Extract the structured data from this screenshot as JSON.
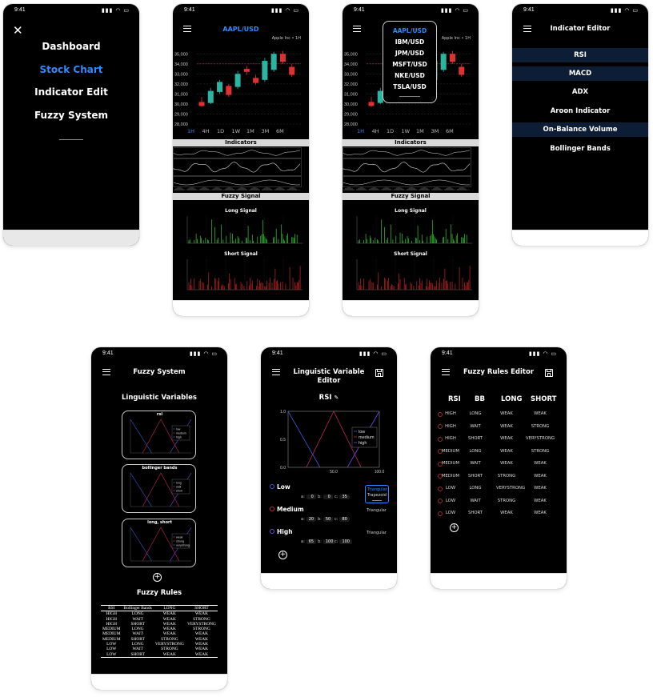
{
  "status": {
    "time": "9:41",
    "icons": "▮▮▮ ◠ ▭"
  },
  "menu": {
    "items": [
      "Dashboard",
      "Stock Chart",
      "Indicator Edit",
      "Fuzzy System"
    ],
    "active": 1
  },
  "chart": {
    "symbol": "AAPL/USD",
    "company": "Apple Inc • 1H",
    "timeframes": [
      "1H",
      "4H",
      "1D",
      "1W",
      "1M",
      "3M",
      "6M"
    ],
    "timeframe_active": 0,
    "indicators_label": "Indicators",
    "fuzzy_label": "Fuzzy Signal",
    "long_label": "Long Signal",
    "short_label": "Short Signal",
    "colors": {
      "up": "#2bb5a0",
      "down": "#e03131",
      "long": "#35c735",
      "short": "#c42424"
    }
  },
  "chart_data": {
    "type": "candlestick",
    "y_ticks": [
      "35,000",
      "34,000",
      "33,000",
      "32,000",
      "31,000",
      "30,000",
      "29,000",
      "28,000"
    ],
    "ylim": [
      28000,
      35500
    ],
    "price_line": 34000,
    "candles": [
      {
        "o": 30200,
        "h": 30700,
        "l": 29700,
        "c": 29800
      },
      {
        "o": 30100,
        "h": 31600,
        "l": 30000,
        "c": 31300
      },
      {
        "o": 31200,
        "h": 32400,
        "l": 31000,
        "c": 32200
      },
      {
        "o": 31800,
        "h": 32000,
        "l": 30700,
        "c": 30900
      },
      {
        "o": 31700,
        "h": 33300,
        "l": 31500,
        "c": 33000
      },
      {
        "o": 33500,
        "h": 33800,
        "l": 32900,
        "c": 33200
      },
      {
        "o": 32600,
        "h": 32900,
        "l": 31900,
        "c": 32100
      },
      {
        "o": 32400,
        "h": 34600,
        "l": 32200,
        "c": 34300
      },
      {
        "o": 33400,
        "h": 35200,
        "l": 33200,
        "c": 35000
      },
      {
        "o": 35000,
        "h": 35300,
        "l": 34000,
        "c": 34200
      },
      {
        "o": 33700,
        "h": 34000,
        "l": 32700,
        "c": 32900
      }
    ]
  },
  "dropdown": {
    "items": [
      "AAPL/USD",
      "IBM/USD",
      "JPM/USD",
      "MSFT/USD",
      "NKE/USD",
      "TSLA/USD"
    ],
    "active": 0
  },
  "indicator_editor": {
    "title": "Indicator Editor",
    "items": [
      "RSI",
      "MACD",
      "ADX",
      "Aroon Indicator",
      "On-Balance Volume",
      "Bollinger Bands"
    ],
    "highlighted": [
      0,
      1,
      4
    ]
  },
  "fuzzy_system": {
    "title": "Fuzzy System",
    "lv_heading": "Linguistic Variables",
    "cards": [
      {
        "title": "rsi",
        "legend": [
          "low",
          "medium",
          "high"
        ]
      },
      {
        "title": "bollinger bands",
        "legend": [
          "long",
          "wait",
          "short"
        ]
      },
      {
        "title": "long, short",
        "legend": [
          "weak",
          "strong",
          "verystrong"
        ]
      }
    ],
    "rules_heading": "Fuzzy Rules",
    "rules_headers": [
      "RSI",
      "Bollinger Bands",
      "LONG",
      "SHORT"
    ],
    "rules": [
      [
        "HIGH",
        "LONG",
        "WEAK",
        "WEAK"
      ],
      [
        "HIGH",
        "WAIT",
        "WEAK",
        "STRONG"
      ],
      [
        "HIGH",
        "SHORT",
        "WEAK",
        "VERYSTRONG"
      ],
      [
        "MEDIUM",
        "LONG",
        "WEAK",
        "STRONG"
      ],
      [
        "MEDIUM",
        "WAIT",
        "WEAK",
        "WEAK"
      ],
      [
        "MEDIUM",
        "SHORT",
        "STRONG",
        "WEAK"
      ],
      [
        "LOW",
        "LONG",
        "VERYSTRONG",
        "WEAK"
      ],
      [
        "LOW",
        "WAIT",
        "STRONG",
        "WEAK"
      ],
      [
        "LOW",
        "SHORT",
        "WEAK",
        "WEAK"
      ]
    ]
  },
  "lv_editor": {
    "title": "Linguistic Variable Editor",
    "variable": "RSI",
    "y_ticks": [
      "1.0",
      "0.5",
      "0.0"
    ],
    "x_ticks": [
      "50.0",
      "100.0"
    ],
    "legend": [
      "low",
      "medium",
      "high"
    ],
    "sets": [
      {
        "name": "Low",
        "a": "0",
        "b": "0",
        "c": "35",
        "shape": "Triangular"
      },
      {
        "name": "Medium",
        "a": "20",
        "b": "50",
        "c": "80",
        "shape": "Triangular"
      },
      {
        "name": "High",
        "a": "65",
        "b": "100",
        "c": "100",
        "shape": "Triangular"
      }
    ],
    "shape_options": [
      "Triangular",
      "Trapezoid"
    ],
    "param_labels": [
      "a:",
      "b:",
      "c:"
    ],
    "colors": {
      "low": "#3b5bdb",
      "medium": "#c2255c",
      "high": "#7048e8"
    }
  },
  "rules_editor": {
    "title": "Fuzzy Rules Editor",
    "headers": [
      "RSI",
      "BB",
      "LONG",
      "SHORT"
    ]
  }
}
